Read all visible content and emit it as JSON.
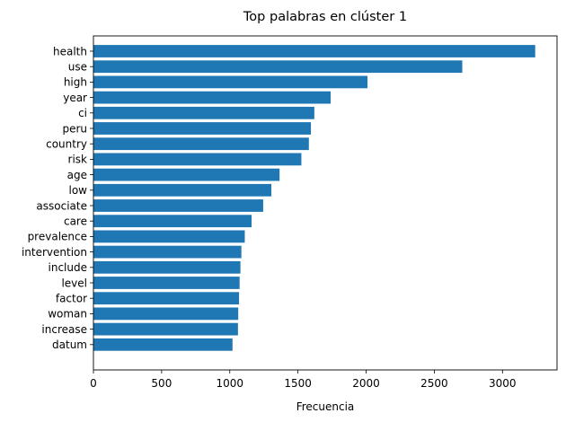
{
  "chart_data": {
    "type": "bar",
    "orientation": "horizontal",
    "title": "Top palabras en clúster 1",
    "xlabel": "Frecuencia",
    "ylabel": "",
    "xlim": [
      0,
      3400
    ],
    "xticks": [
      0,
      500,
      1000,
      1500,
      2000,
      2500,
      3000
    ],
    "categories": [
      "health",
      "use",
      "high",
      "year",
      "ci",
      "peru",
      "country",
      "risk",
      "age",
      "low",
      "associate",
      "care",
      "prevalence",
      "intervention",
      "include",
      "level",
      "factor",
      "woman",
      "increase",
      "datum"
    ],
    "values": [
      3240,
      2705,
      2010,
      1740,
      1620,
      1595,
      1580,
      1525,
      1365,
      1305,
      1245,
      1160,
      1110,
      1085,
      1078,
      1072,
      1068,
      1062,
      1060,
      1020
    ],
    "bar_color": "#1f77b4",
    "grid": false,
    "legend": "none"
  }
}
